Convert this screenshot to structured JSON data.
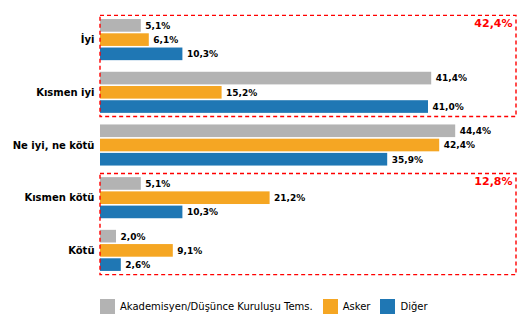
{
  "chart_data": {
    "type": "bar",
    "orientation": "horizontal",
    "categories": [
      "İyi",
      "Kısmen iyi",
      "Ne iyi, ne kötü",
      "Kısmen kötü",
      "Kötü"
    ],
    "series": [
      {
        "name": "Akademisyen/Düşünce Kuruluşu Tems.",
        "color": "#b3b3b3",
        "values": [
          5.1,
          41.4,
          44.4,
          5.1,
          2.0
        ],
        "value_labels": [
          "5,1%",
          "41,4%",
          "44,4%",
          "5,1%",
          "2,0%"
        ]
      },
      {
        "name": "Asker",
        "color": "#f5a623",
        "values": [
          6.1,
          15.2,
          42.4,
          21.2,
          9.1
        ],
        "value_labels": [
          "6,1%",
          "15,2%",
          "42,4%",
          "21,2%",
          "9,1%"
        ]
      },
      {
        "name": "Diğer",
        "color": "#1f77b4",
        "values": [
          10.3,
          41.0,
          35.9,
          10.3,
          2.6
        ],
        "value_labels": [
          "10,3%",
          "41,0%",
          "35,9%",
          "10,3%",
          "2,6%"
        ]
      }
    ],
    "xlim": [
      0,
      52
    ],
    "tick_labels": "y",
    "data_labels": true,
    "grid": false,
    "legend": "bottom",
    "annotations": [
      {
        "text": "42,4%",
        "categories": [
          "İyi",
          "Kısmen iyi"
        ],
        "color": "red"
      },
      {
        "text": "12,8%",
        "categories": [
          "Kısmen kötü",
          "Kötü"
        ],
        "color": "red"
      }
    ]
  }
}
